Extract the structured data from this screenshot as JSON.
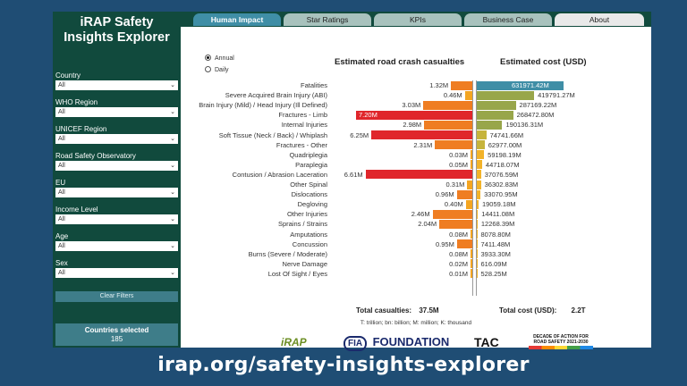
{
  "app": {
    "title_line1": "iRAP Safety",
    "title_line2": "Insights Explorer"
  },
  "tabs": [
    {
      "label": "Human Impact",
      "active": true
    },
    {
      "label": "Star Ratings",
      "active": false
    },
    {
      "label": "KPIs",
      "active": false
    },
    {
      "label": "Business Case",
      "active": false
    },
    {
      "label": "About",
      "active": false
    }
  ],
  "filters": [
    {
      "label": "Country",
      "value": "All"
    },
    {
      "label": "WHO Region",
      "value": "All"
    },
    {
      "label": "UNICEF Region",
      "value": "All"
    },
    {
      "label": "Road Safety Observatory",
      "value": "All"
    },
    {
      "label": "EU",
      "value": "All"
    },
    {
      "label": "Income Level",
      "value": "All"
    },
    {
      "label": "Age",
      "value": "All"
    },
    {
      "label": "Sex",
      "value": "All"
    }
  ],
  "clear_filters_label": "Clear Filters",
  "countries_selected": {
    "label": "Countries selected",
    "value": "185"
  },
  "period": {
    "annual_label": "Annual",
    "daily_label": "Daily",
    "selected": "Annual"
  },
  "chart_data": {
    "type": "bar",
    "casualties_title": "Estimated road crash casualties",
    "cost_title": "Estimated cost (USD)",
    "categories": [
      "Fatalities",
      "Severe Acquired Brain Injury (ABI)",
      "Brain Injury (Mild) / Head Injury (Ill Defined)",
      "Fractures - Limb",
      "Internal Injuries",
      "Soft Tissue (Neck / Back) / Whiplash",
      "Fractures - Other",
      "Quadriplegia",
      "Paraplegia",
      "Contusion / Abrasion Laceration",
      "Other Spinal",
      "Dislocations",
      "Degloving",
      "Other Injuries",
      "Sprains / Strains",
      "Amputations",
      "Concussion",
      "Burns (Severe / Moderate)",
      "Nerve Damage",
      "Lost Of Sight / Eyes"
    ],
    "casualties": [
      1.32,
      0.46,
      3.03,
      7.2,
      2.98,
      6.25,
      2.31,
      0.03,
      0.05,
      6.61,
      0.31,
      0.96,
      0.4,
      2.46,
      2.04,
      0.08,
      0.95,
      0.08,
      0.02,
      0.01
    ],
    "casualty_labels": [
      "1.32M",
      "0.46M",
      "3.03M",
      "7.20M",
      "2.98M",
      "6.25M",
      "2.31M",
      "0.03M",
      "0.05M",
      "6.61M",
      "0.31M",
      "0.96M",
      "0.40M",
      "2.46M",
      "2.04M",
      "0.08M",
      "0.95M",
      "0.08M",
      "0.02M",
      "0.01M"
    ],
    "costs": [
      631971.42,
      419791.27,
      287169.22,
      268472.8,
      190136.31,
      74741.66,
      62977.0,
      59198.19,
      44718.07,
      37076.59,
      36302.83,
      33070.95,
      19059.18,
      14411.08,
      12268.39,
      8078.8,
      7411.48,
      3933.3,
      616.09,
      528.25
    ],
    "cost_labels": [
      "631971.42M",
      "419791.27M",
      "287169.22M",
      "268472.80M",
      "190136.31M",
      "74741.66M",
      "62977.00M",
      "59198.19M",
      "44718.07M",
      "37076.59M",
      "36302.83M",
      "33070.95M",
      "19059.18M",
      "14411.08M",
      "12268.39M",
      "8078.80M",
      "7411.48M",
      "3933.30M",
      "616.09M",
      "528.25M"
    ],
    "colors": {
      "cas_high": "#e0262b",
      "cas_mid": "#ef7d22",
      "cas_low": "#f4a521",
      "cost_top": "#3f8ea6",
      "cost_high": "#98a64a",
      "cost_mid": "#c6b43c",
      "cost_low": "#f2b32a"
    }
  },
  "totals": {
    "casualties_label": "Total casualties:",
    "casualties_value": "37.5M",
    "cost_label": "Total cost (USD):",
    "cost_value": "2.2T"
  },
  "footnote": "T: trillion; bn: billion; M: million; K: thousand",
  "logos": {
    "irap": "iRAP",
    "fia": "FOUNDATION",
    "fia_mark": "FIA",
    "tac": "TAC",
    "decade": "DECADE OF ACTION FOR ROAD SAFETY 2021-2030"
  },
  "url": "irap.org/safety-insights-explorer"
}
